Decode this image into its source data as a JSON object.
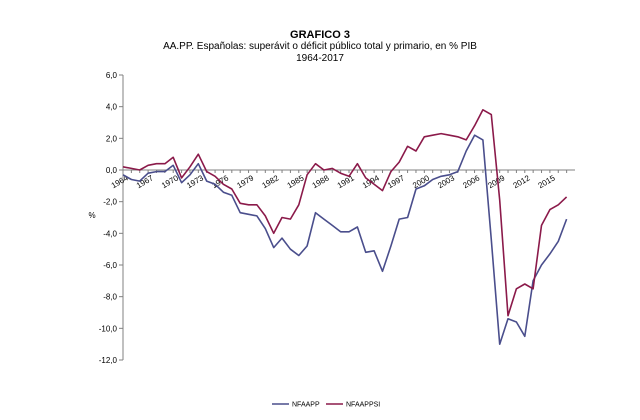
{
  "chart_data": {
    "type": "line",
    "title": "GRAFICO 3",
    "subtitle": "AA.PP. Españolas:  superávit o déficit público total y primario, en % PIB",
    "period": "1964-2017",
    "ylabel": "%",
    "xlabel": "",
    "ylim": [
      -12,
      6
    ],
    "yticks": [
      "6,0",
      "4,0",
      "2,0",
      "0,0",
      "-2,0",
      "-4,0",
      "-6,0",
      "-8,0",
      "-10,0",
      "-12,0"
    ],
    "xtick_labels": [
      "1964",
      "1967",
      "1970",
      "1973",
      "1976",
      "1979",
      "1982",
      "1985",
      "1988",
      "1991",
      "1994",
      "1997",
      "2000",
      "2003",
      "2006",
      "2009",
      "2012",
      "2015"
    ],
    "x": [
      1964,
      1965,
      1966,
      1967,
      1968,
      1969,
      1970,
      1971,
      1972,
      1973,
      1974,
      1975,
      1976,
      1977,
      1978,
      1979,
      1980,
      1981,
      1982,
      1983,
      1984,
      1985,
      1986,
      1987,
      1988,
      1989,
      1990,
      1991,
      1992,
      1993,
      1994,
      1995,
      1996,
      1997,
      1998,
      1999,
      2000,
      2001,
      2002,
      2003,
      2004,
      2005,
      2006,
      2007,
      2008,
      2009,
      2010,
      2011,
      2012,
      2013,
      2014,
      2015,
      2016,
      2017
    ],
    "series": [
      {
        "name": "NFAAPP",
        "color": "#4a4e8c",
        "values": [
          -0.3,
          -0.6,
          -0.7,
          -0.2,
          -0.1,
          -0.1,
          0.3,
          -0.8,
          -0.3,
          0.4,
          -0.7,
          -0.9,
          -1.4,
          -1.6,
          -2.7,
          -2.8,
          -2.9,
          -3.7,
          -4.9,
          -4.3,
          -5.0,
          -5.4,
          -4.8,
          -2.7,
          -3.1,
          -3.5,
          -3.9,
          -3.9,
          -3.6,
          -5.2,
          -5.1,
          -6.4,
          -4.8,
          -3.1,
          -3.0,
          -1.2,
          -1.0,
          -0.6,
          -0.4,
          -0.3,
          -0.1,
          1.2,
          2.2,
          1.9,
          -4.4,
          -11.0,
          -9.4,
          -9.6,
          -10.5,
          -7.0,
          -6.0,
          -5.3,
          -4.5,
          -3.1
        ]
      },
      {
        "name": "NFAAPPSI",
        "color": "#8b1a4a",
        "values": [
          0.2,
          0.1,
          0.0,
          0.3,
          0.4,
          0.4,
          0.8,
          -0.5,
          0.2,
          1.0,
          -0.1,
          -0.4,
          -0.9,
          -1.2,
          -2.1,
          -2.2,
          -2.2,
          -2.9,
          -4.0,
          -3.0,
          -3.1,
          -2.2,
          -0.3,
          0.4,
          0.0,
          0.1,
          -0.2,
          -0.4,
          0.4,
          -0.5,
          -0.9,
          -1.3,
          -0.1,
          0.5,
          1.5,
          1.2,
          2.1,
          2.2,
          2.3,
          2.2,
          2.1,
          1.9,
          2.8,
          3.8,
          3.5,
          -1.9,
          -9.2,
          -7.5,
          -7.2,
          -7.5,
          -3.5,
          -2.5,
          -2.2,
          -1.7
        ]
      }
    ],
    "legend": [
      "NFAAPP",
      "NFAAPPSI"
    ],
    "legend_position": "bottom-center"
  }
}
